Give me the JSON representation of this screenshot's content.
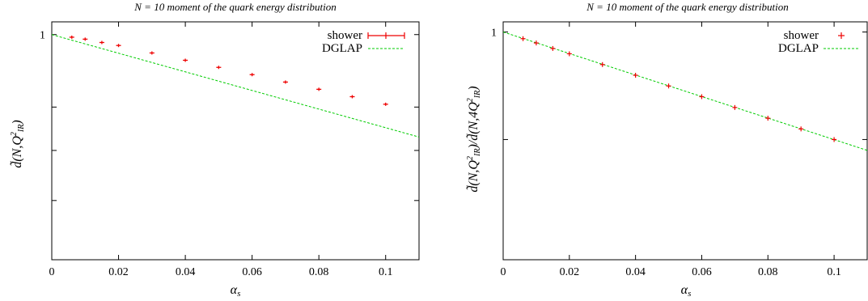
{
  "chart_data": [
    {
      "type": "scatter",
      "title": "N = 10 moment of the quark energy distribution",
      "xlabel": "αs",
      "ylabel": "d̃(N, Q²IR)",
      "y_scale": "log",
      "xlim": [
        0,
        0.11
      ],
      "ylim": [
        0.5,
        1.04
      ],
      "x_ticks": [
        0,
        0.02,
        0.04,
        0.06,
        0.08,
        0.1
      ],
      "x_tick_labels": [
        "0",
        "0.02",
        "0.04",
        "0.06",
        "0.08",
        "0.1"
      ],
      "y_ticks": [
        0.6,
        0.7,
        0.8,
        1
      ],
      "y_tick_labels": [
        "",
        "",
        "",
        "1"
      ],
      "legend_position": "top-right",
      "series": [
        {
          "name": "shower",
          "style": "points-with-errorbars",
          "color": "#ee0000",
          "x": [
            0.006,
            0.01,
            0.015,
            0.02,
            0.03,
            0.04,
            0.05,
            0.06,
            0.07,
            0.08,
            0.09,
            0.1
          ],
          "y": [
            0.992,
            0.986,
            0.976,
            0.967,
            0.945,
            0.924,
            0.904,
            0.884,
            0.864,
            0.845,
            0.826,
            0.807
          ]
        },
        {
          "name": "DGLAP",
          "style": "dashed-line",
          "color": "#00cc00",
          "x": [
            0,
            0.11
          ],
          "y": [
            1.0,
            0.7295
          ]
        }
      ]
    },
    {
      "type": "scatter",
      "title": "N = 10 moment of the quark energy distribution",
      "xlabel": "αs",
      "ylabel": "d̃(N, Q²IR) / d̃(N, 4Q²IR)",
      "y_scale": "log",
      "xlim": [
        0,
        0.11
      ],
      "ylim": [
        0.8,
        1.01
      ],
      "x_ticks": [
        0,
        0.02,
        0.04,
        0.06,
        0.08,
        0.1
      ],
      "x_tick_labels": [
        "0",
        "0.02",
        "0.04",
        "0.06",
        "0.08",
        "0.1"
      ],
      "y_ticks": [
        0.9,
        1
      ],
      "y_tick_labels": [
        "",
        "1"
      ],
      "legend_position": "top-right",
      "series": [
        {
          "name": "shower",
          "style": "points",
          "color": "#ee0000",
          "x": [
            0.006,
            0.01,
            0.015,
            0.02,
            0.03,
            0.04,
            0.05,
            0.06,
            0.07,
            0.08,
            0.09,
            0.1
          ],
          "y": [
            0.9935,
            0.9893,
            0.984,
            0.9789,
            0.9686,
            0.9585,
            0.9485,
            0.9386,
            0.9287,
            0.919,
            0.9094,
            0.9
          ]
        },
        {
          "name": "DGLAP",
          "style": "dashed-line",
          "color": "#00cc00",
          "x": [
            0,
            0.11
          ],
          "y": [
            1.0,
            0.8905
          ]
        }
      ]
    }
  ]
}
